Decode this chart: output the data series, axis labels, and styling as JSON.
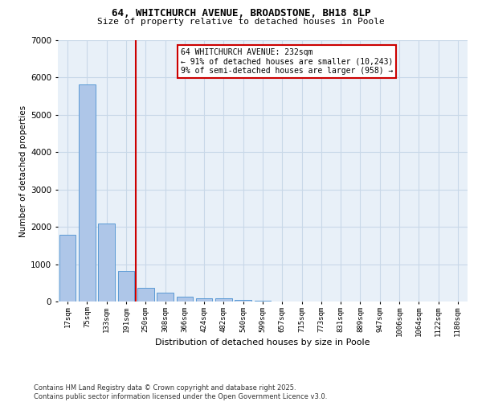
{
  "title_line1": "64, WHITCHURCH AVENUE, BROADSTONE, BH18 8LP",
  "title_line2": "Size of property relative to detached houses in Poole",
  "xlabel": "Distribution of detached houses by size in Poole",
  "ylabel": "Number of detached properties",
  "categories": [
    "17sqm",
    "75sqm",
    "133sqm",
    "191sqm",
    "250sqm",
    "308sqm",
    "366sqm",
    "424sqm",
    "482sqm",
    "540sqm",
    "599sqm",
    "657sqm",
    "715sqm",
    "773sqm",
    "831sqm",
    "889sqm",
    "947sqm",
    "1006sqm",
    "1064sqm",
    "1122sqm",
    "1180sqm"
  ],
  "values": [
    1780,
    5820,
    2090,
    820,
    370,
    230,
    140,
    90,
    80,
    35,
    20,
    8,
    3,
    2,
    1,
    0,
    0,
    0,
    0,
    0,
    0
  ],
  "bar_color": "#aec6e8",
  "bar_edge_color": "#5b9bd5",
  "vline_x": 3.5,
  "vline_color": "#cc0000",
  "annotation_text": "64 WHITCHURCH AVENUE: 232sqm\n← 91% of detached houses are smaller (10,243)\n9% of semi-detached houses are larger (958) →",
  "annotation_box_color": "#cc0000",
  "ylim": [
    0,
    7000
  ],
  "yticks": [
    0,
    1000,
    2000,
    3000,
    4000,
    5000,
    6000,
    7000
  ],
  "grid_color": "#c8d8e8",
  "bg_color": "#e8f0f8",
  "footer_line1": "Contains HM Land Registry data © Crown copyright and database right 2025.",
  "footer_line2": "Contains public sector information licensed under the Open Government Licence v3.0."
}
